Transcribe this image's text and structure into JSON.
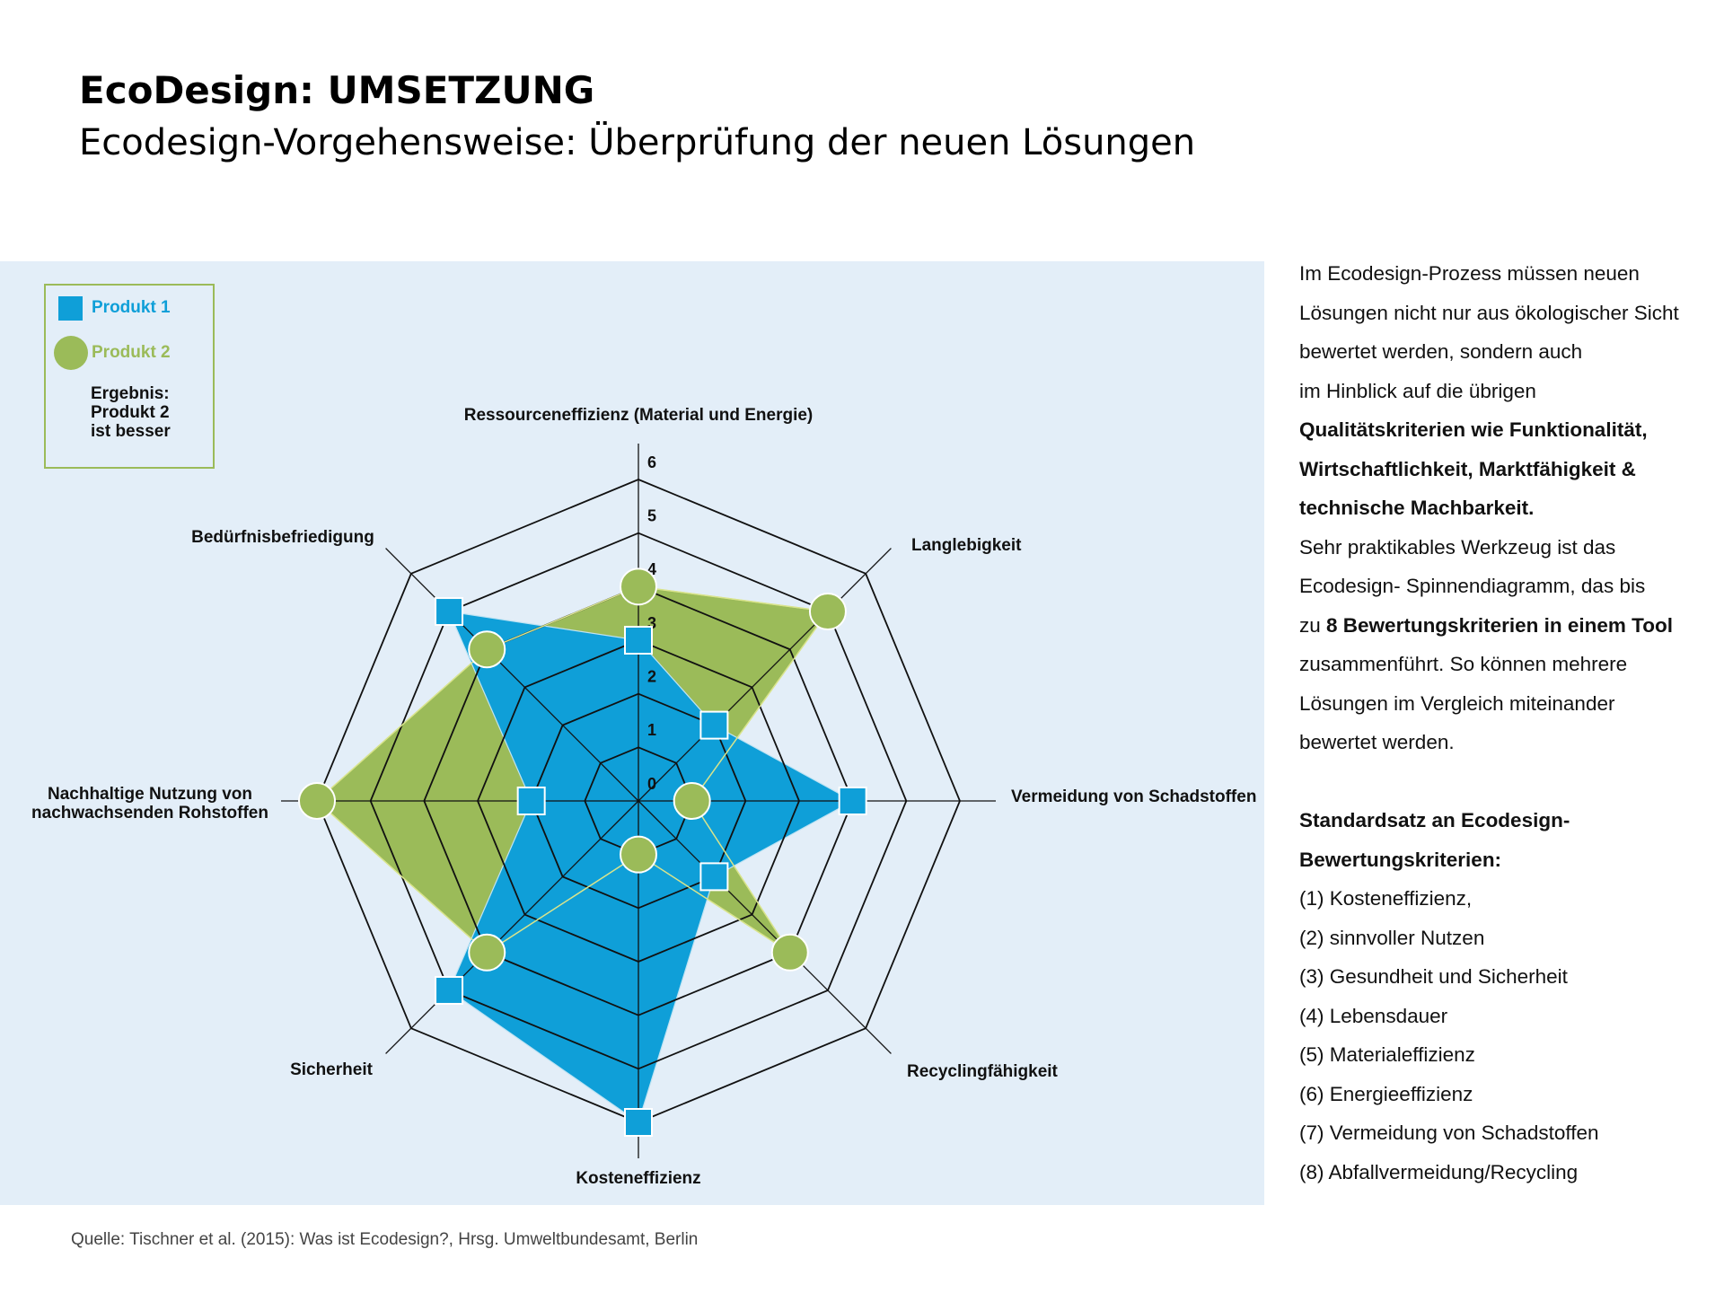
{
  "header": {
    "title": "EcoDesign: UMSETZUNG",
    "subtitle": "Ecodesign-Vorgehensweise: Überprüfung der neuen Lösungen"
  },
  "chart_data": {
    "type": "radar",
    "categories": [
      "Ressourceneffizienz (Material und Energie)",
      "Langlebigkeit",
      "Vermeidung von Schadstoffen",
      "Recyclingfähigkeit",
      "Kosteneffizienz",
      "Sicherheit",
      "Nachhaltige Nutzung von\nnachwachsenden Rohstoffen",
      "Bedürfnisbefriedigung"
    ],
    "ylim": [
      0,
      6
    ],
    "yticks": [
      0,
      1,
      2,
      3,
      4,
      5,
      6
    ],
    "series": [
      {
        "name": "Produkt 1",
        "color": "#0f9fd8",
        "marker": "square",
        "values": [
          3,
          2,
          4,
          2,
          6,
          5,
          2,
          5
        ]
      },
      {
        "name": "Produkt 2",
        "color": "#9bbb59",
        "marker": "circle",
        "values": [
          4,
          5,
          1,
          4,
          1,
          4,
          6,
          4
        ]
      }
    ],
    "legend_note": "Ergebnis:\nProdukt 2\nist besser"
  },
  "source": "Quelle: Tischner et al. (2015): Was ist Ecodesign?, Hrsg. Umweltbundesamt, Berlin",
  "text": {
    "blocks": [
      {
        "lines": [
          [
            {
              "text": "Im Ecodesign-Prozess müssen neuen",
              "bold": false
            }
          ],
          [
            {
              "text": "Lösungen nicht nur aus ökologischer Sicht",
              "bold": false
            }
          ],
          [
            {
              "text": "bewertet werden, sondern auch",
              "bold": false
            }
          ],
          [
            {
              "text": "im Hinblick auf die übrigen",
              "bold": false
            }
          ],
          [
            {
              "text": "Qualitätskriterien wie Funktionalität,",
              "bold": true
            }
          ],
          [
            {
              "text": "Wirtschaftlichkeit, Marktfähigkeit &",
              "bold": true
            }
          ],
          [
            {
              "text": "technische Machbarkeit.",
              "bold": true
            }
          ],
          [
            {
              "text": "Sehr praktikables Werkzeug ist das",
              "bold": false
            }
          ],
          [
            {
              "text": "Ecodesign- Spinnendiagramm, das bis",
              "bold": false
            }
          ],
          [
            {
              "text": "zu",
              "bold": false
            },
            {
              "text": "8 Bewertungskriterien in einem Tool",
              "bold": true
            }
          ],
          [
            {
              "text": "zusammenführt. So können mehrere",
              "bold": false
            }
          ],
          [
            {
              "text": "Lösungen im Vergleich miteinander",
              "bold": false
            }
          ],
          [
            {
              "text": "bewertet werden.",
              "bold": false
            }
          ]
        ]
      },
      {
        "lines": [
          [
            {
              "text": "Standardsatz an Ecodesign-",
              "bold": true
            }
          ],
          [
            {
              "text": "Bewertungskriterien:",
              "bold": true
            }
          ],
          [
            {
              "text": "(1) Kosteneffizienz,",
              "bold": false
            }
          ],
          [
            {
              "text": "(2) sinnvoller Nutzen",
              "bold": false
            }
          ],
          [
            {
              "text": "(3) Gesundheit und Sicherheit",
              "bold": false
            }
          ],
          [
            {
              "text": "(4) Lebensdauer",
              "bold": false
            }
          ],
          [
            {
              "text": "(5) Materialeffizienz",
              "bold": false
            }
          ],
          [
            {
              "text": "(6) Energieeffizienz",
              "bold": false
            }
          ],
          [
            {
              "text": "(7) Vermeidung von Schadstoffen",
              "bold": false
            }
          ],
          [
            {
              "text": "(8) Abfallvermeidung/Recycling",
              "bold": false
            }
          ]
        ]
      }
    ]
  }
}
